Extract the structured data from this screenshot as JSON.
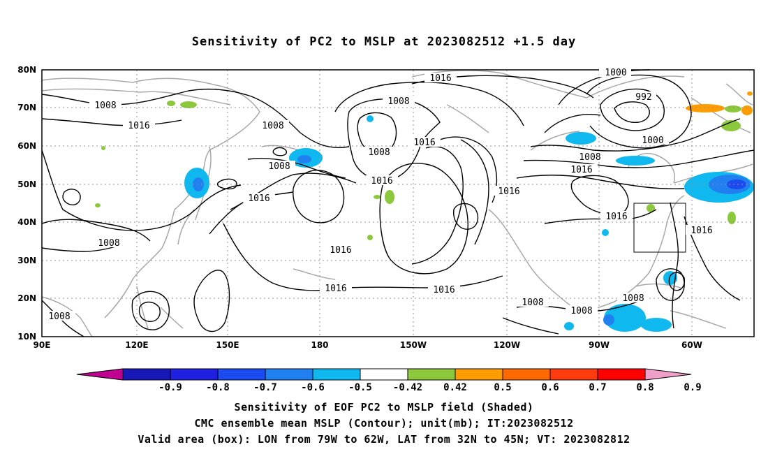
{
  "title": "Sensitivity of PC2 to MSLP at 2023082512 +1.5 day",
  "lon_labels": [
    "90E",
    "120E",
    "150E",
    "180",
    "150W",
    "120W",
    "90W",
    "60W"
  ],
  "lat_labels": [
    "80N",
    "70N",
    "60N",
    "50N",
    "40N",
    "30N",
    "20N",
    "10N"
  ],
  "contour_labels": {
    "l1016_top": "1016",
    "l1000_top": "1000",
    "l992": "992",
    "l1008_nw": "1008",
    "l1016_w": "1016",
    "l1008_siberia": "1008",
    "l1008_kam": "1008",
    "l1008_aleut": "1008",
    "l1016_ak": "1016",
    "l1000_can": "1000",
    "l1008_can": "1008",
    "l1016_can": "1016",
    "l1016_wcoast": "1016",
    "l1008_bering": "1008",
    "l1016_np": "1016",
    "l1008_sw": "1008",
    "l1016_cp": "1016",
    "l1016_sub1": "1016",
    "l1016_sub2": "1016",
    "l1016_east": "1016",
    "l1016_atl": "1016",
    "l1008_mex": "1008",
    "l1008_car": "1008",
    "l1008_carib": "1008",
    "l1008_india": "1008"
  },
  "colorbar": {
    "ticks": [
      "-0.9",
      "-0.8",
      "-0.7",
      "-0.6",
      "-0.5",
      "-0.42",
      "0.42",
      "0.5",
      "0.6",
      "0.7",
      "0.8",
      "0.9"
    ],
    "colors": [
      "#c0008f",
      "#1818b8",
      "#2020e0",
      "#1c4cf0",
      "#2080f0",
      "#10b8f0",
      "#ffffff",
      "#8cc83c",
      "#ff9c00",
      "#ff6a00",
      "#ff3c10",
      "#ff0000",
      "#f0a0c8"
    ]
  },
  "captions": [
    "Sensitivity of EOF PC2 to MSLP field (Shaded)",
    "CMC ensemble mean MSLP (Contour); unit(mb); IT:2023082512",
    "Valid area (box): LON from 79W to 62W, LAT from 32N to 45N; VT: 2023082812"
  ]
}
